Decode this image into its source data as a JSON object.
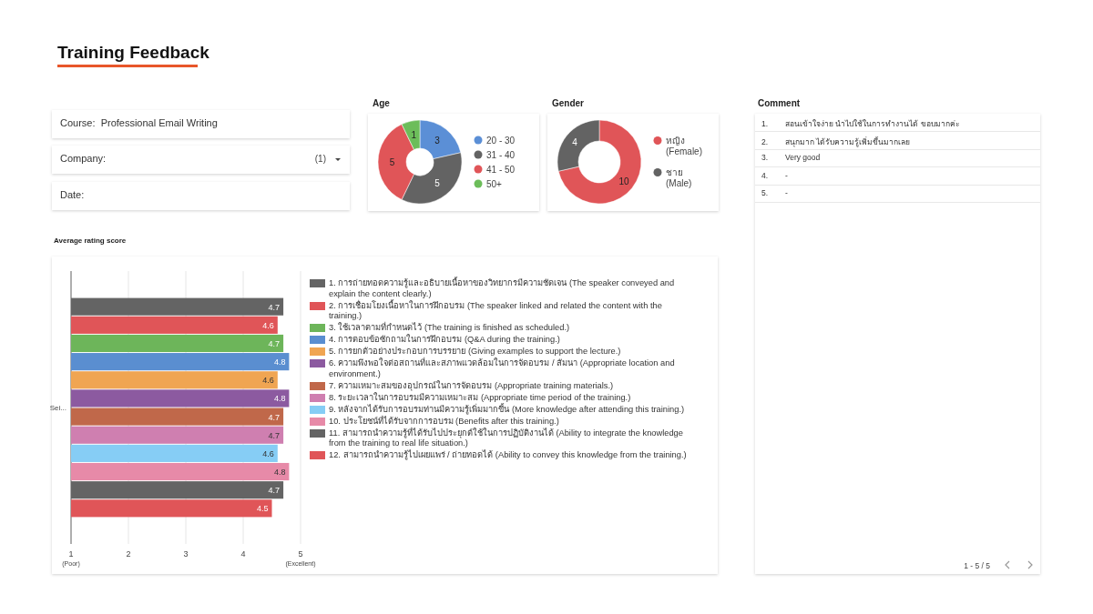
{
  "chart_data": [
    {
      "type": "other",
      "title": "Training Feedback",
      "annotations": [
        "Course:  Professional Email Writing",
        "Company:",
        "(1)",
        "Date:"
      ]
    },
    {
      "type": "donut",
      "title": "Age",
      "categories": [
        "20 - 30",
        "31 - 40",
        "41 - 50",
        "50+"
      ],
      "values": [
        3,
        5,
        5,
        1
      ],
      "colors": [
        "#5b8fd6",
        "#636363",
        "#e05558",
        "#6cbd5a"
      ],
      "data_labels": true,
      "legend": "right"
    },
    {
      "type": "donut",
      "title": "Gender",
      "categories": [
        "หญิง\n(Female)",
        "ชาย\n(Male)"
      ],
      "values": [
        10,
        4
      ],
      "colors": [
        "#e05558",
        "#636363"
      ],
      "data_labels": true,
      "legend": "right"
    },
    {
      "type": "bar",
      "title": "Average rating score",
      "orientation": "horizontal",
      "categories": [
        "Sei..."
      ],
      "xlim": [
        1,
        5
      ],
      "xticks": [
        {
          "value": 1,
          "label": "1\n(Poor)"
        },
        2,
        3,
        4,
        {
          "value": 5,
          "label": "5\n(Excellent)"
        }
      ],
      "grid": "x",
      "legend": "right",
      "data_labels": true,
      "series": [
        {
          "name": "1. การถ่ายทอดความรู้และอธิบายเนื้อหาของวิทยากรมีความชัดเจน (The speaker conveyed and explain the content clearly.)",
          "color": "#646464",
          "values": [
            4.7
          ]
        },
        {
          "name": "2. การเชื่อมโยงเนื้อหาในการฝึกอบรม (The speaker linked and related the content with the training.)",
          "color": "#e05558",
          "values": [
            4.6
          ]
        },
        {
          "name": "3. ใช้เวลาตามที่กำหนดไว้ (The training is finished as scheduled.)",
          "color": "#6db55a",
          "values": [
            4.7
          ]
        },
        {
          "name": "4. การตอบข้อซักถามในการฝึกอบรม (Q&A during the training.)",
          "color": "#5a8ed0",
          "values": [
            4.8
          ]
        },
        {
          "name": "5. การยกตัวอย่างประกอบการบรรยาย (Giving examples to support the lecture.)",
          "color": "#f0a552",
          "values": [
            4.6
          ]
        },
        {
          "name": "6. ความพึงพอใจต่อสถานที่และสภาพแวดล้อมในการจัดอบรม / สัมนา (Appropriate location and environment.)",
          "color": "#8c5aa0",
          "values": [
            4.8
          ]
        },
        {
          "name": "7. ความเหมาะสมของอุปกรณ์ในการจัดอบรม (Appropriate training materials.)",
          "color": "#c0684a",
          "values": [
            4.7
          ]
        },
        {
          "name": "8. ระยะเวลาในการอบรมมีความเหมาะสม (Appropriate time period of the training.)",
          "color": "#cf7fb0",
          "values": [
            4.7
          ]
        },
        {
          "name": "9. หลังจากได้รับการอบรมท่านมีความรู้เพิ่มมากขึ้น (More knowledge after attending this training.)",
          "color": "#86cdf5",
          "values": [
            4.6
          ]
        },
        {
          "name": "10. ประโยชน์ที่ได้รับจากการอบรม (Benefits after this training.)",
          "color": "#e78aa8",
          "values": [
            4.8
          ]
        },
        {
          "name": "11. สามารถนำความรู้ที่ได้รับไปประยุกต์ใช้ในการปฏิบัติงานได้ (Ability to integrate the knowledge from the training to real life situation.)",
          "color": "#646464",
          "values": [
            4.7
          ]
        },
        {
          "name": "12. สามารถนำความรู้ไปเผยแพร่ / ถ่ายทอดได้ (Ability to convey this knowledge from the training.)",
          "color": "#e05558",
          "values": [
            4.5
          ]
        }
      ]
    },
    {
      "type": "other",
      "title": "Comment",
      "annotations": [
        "1. สอนเข้าใจง่าย นำไปใช้ในการทำงานได้ ขอบมากค่ะ",
        "2. สนุกมาก ได้รับความรู้เพิ่มขึ้นมากเลย",
        "3. Very good",
        "4. -",
        "5. -",
        "1 - 5 / 5"
      ]
    }
  ]
}
